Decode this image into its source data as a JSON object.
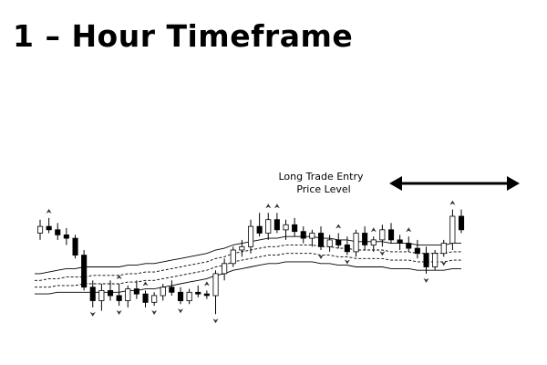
{
  "title": "1 – Hour Timeframe",
  "annotation": {
    "line1": "Long Trade Entry",
    "line2": "Price Level"
  },
  "colors": {
    "bull_body": "#ffffff",
    "bear_body": "#000000",
    "wick": "#000000",
    "band": "#000000",
    "background": "#ffffff"
  },
  "chart_data": {
    "type": "candlestick",
    "grid": false,
    "axes_visible": false,
    "ylim": [
      0,
      100
    ],
    "candles": [
      {
        "o": 70,
        "h": 78,
        "l": 66,
        "c": 74
      },
      {
        "o": 74,
        "h": 79,
        "l": 70,
        "c": 72
      },
      {
        "o": 72,
        "h": 76,
        "l": 66,
        "c": 69
      },
      {
        "o": 69,
        "h": 73,
        "l": 63,
        "c": 67
      },
      {
        "o": 67,
        "h": 69,
        "l": 55,
        "c": 57
      },
      {
        "o": 57,
        "h": 60,
        "l": 36,
        "c": 38
      },
      {
        "o": 38,
        "h": 42,
        "l": 26,
        "c": 30
      },
      {
        "o": 30,
        "h": 40,
        "l": 24,
        "c": 36
      },
      {
        "o": 36,
        "h": 42,
        "l": 30,
        "c": 33
      },
      {
        "o": 33,
        "h": 40,
        "l": 27,
        "c": 30
      },
      {
        "o": 30,
        "h": 39,
        "l": 26,
        "c": 37
      },
      {
        "o": 37,
        "h": 42,
        "l": 31,
        "c": 34
      },
      {
        "o": 34,
        "h": 36,
        "l": 26,
        "c": 29
      },
      {
        "o": 29,
        "h": 35,
        "l": 27,
        "c": 33
      },
      {
        "o": 33,
        "h": 40,
        "l": 30,
        "c": 38
      },
      {
        "o": 38,
        "h": 42,
        "l": 33,
        "c": 35
      },
      {
        "o": 35,
        "h": 38,
        "l": 28,
        "c": 30
      },
      {
        "o": 30,
        "h": 37,
        "l": 28,
        "c": 35
      },
      {
        "o": 35,
        "h": 39,
        "l": 32,
        "c": 34
      },
      {
        "o": 34,
        "h": 36,
        "l": 31,
        "c": 33
      },
      {
        "o": 33,
        "h": 48,
        "l": 22,
        "c": 46
      },
      {
        "o": 46,
        "h": 55,
        "l": 42,
        "c": 52
      },
      {
        "o": 52,
        "h": 62,
        "l": 50,
        "c": 60
      },
      {
        "o": 60,
        "h": 66,
        "l": 56,
        "c": 62
      },
      {
        "o": 62,
        "h": 78,
        "l": 58,
        "c": 74
      },
      {
        "o": 74,
        "h": 82,
        "l": 68,
        "c": 70
      },
      {
        "o": 70,
        "h": 82,
        "l": 66,
        "c": 78
      },
      {
        "o": 78,
        "h": 82,
        "l": 70,
        "c": 72
      },
      {
        "o": 72,
        "h": 78,
        "l": 66,
        "c": 75
      },
      {
        "o": 75,
        "h": 79,
        "l": 68,
        "c": 71
      },
      {
        "o": 71,
        "h": 74,
        "l": 64,
        "c": 67
      },
      {
        "o": 67,
        "h": 72,
        "l": 62,
        "c": 70
      },
      {
        "o": 70,
        "h": 74,
        "l": 60,
        "c": 62
      },
      {
        "o": 62,
        "h": 69,
        "l": 59,
        "c": 66
      },
      {
        "o": 66,
        "h": 70,
        "l": 61,
        "c": 63
      },
      {
        "o": 63,
        "h": 68,
        "l": 57,
        "c": 59
      },
      {
        "o": 59,
        "h": 72,
        "l": 56,
        "c": 70
      },
      {
        "o": 70,
        "h": 74,
        "l": 60,
        "c": 63
      },
      {
        "o": 63,
        "h": 68,
        "l": 59,
        "c": 66
      },
      {
        "o": 66,
        "h": 75,
        "l": 62,
        "c": 72
      },
      {
        "o": 72,
        "h": 76,
        "l": 64,
        "c": 66
      },
      {
        "o": 66,
        "h": 69,
        "l": 60,
        "c": 64
      },
      {
        "o": 64,
        "h": 68,
        "l": 59,
        "c": 61
      },
      {
        "o": 61,
        "h": 66,
        "l": 55,
        "c": 58
      },
      {
        "o": 58,
        "h": 62,
        "l": 46,
        "c": 50
      },
      {
        "o": 50,
        "h": 60,
        "l": 48,
        "c": 58
      },
      {
        "o": 58,
        "h": 66,
        "l": 56,
        "c": 64
      },
      {
        "o": 64,
        "h": 84,
        "l": 60,
        "c": 80
      },
      {
        "o": 80,
        "h": 84,
        "l": 70,
        "c": 72
      }
    ],
    "bands": [
      {
        "name": "upper",
        "values": [
          46,
          47,
          48,
          49,
          49,
          50,
          50,
          50,
          50,
          50,
          51,
          51,
          52,
          52,
          53,
          54,
          55,
          56,
          57,
          58,
          60,
          61,
          63,
          64,
          65,
          66,
          67,
          67,
          68,
          68,
          68,
          68,
          67,
          67,
          66,
          66,
          65,
          65,
          65,
          65,
          64,
          64,
          64,
          63,
          63,
          63,
          63,
          64,
          64
        ]
      },
      {
        "name": "inner-upper",
        "values": [
          42,
          43,
          43,
          44,
          44,
          44,
          45,
          45,
          45,
          45,
          46,
          46,
          47,
          47,
          48,
          49,
          50,
          51,
          52,
          53,
          55,
          56,
          58,
          59,
          60,
          61,
          62,
          62,
          63,
          63,
          63,
          63,
          62,
          62,
          61,
          61,
          60,
          60,
          60,
          60,
          59,
          59,
          59,
          58,
          58,
          58,
          58,
          59,
          59
        ]
      },
      {
        "name": "inner-lower",
        "values": [
          38,
          38,
          39,
          39,
          39,
          40,
          40,
          40,
          40,
          40,
          41,
          41,
          42,
          42,
          43,
          44,
          45,
          46,
          47,
          48,
          50,
          51,
          53,
          54,
          55,
          56,
          57,
          57,
          58,
          58,
          58,
          58,
          57,
          57,
          56,
          56,
          55,
          55,
          55,
          55,
          54,
          54,
          54,
          53,
          53,
          53,
          53,
          54,
          54
        ]
      },
      {
        "name": "lower",
        "values": [
          34,
          34,
          35,
          35,
          35,
          35,
          35,
          35,
          35,
          35,
          36,
          36,
          37,
          37,
          38,
          39,
          40,
          41,
          42,
          43,
          45,
          46,
          48,
          49,
          50,
          51,
          52,
          52,
          53,
          53,
          53,
          53,
          52,
          52,
          51,
          51,
          50,
          50,
          50,
          50,
          49,
          49,
          49,
          48,
          48,
          48,
          48,
          49,
          49
        ]
      }
    ],
    "fractals": [
      {
        "i": 1,
        "pos": "high"
      },
      {
        "i": 6,
        "pos": "low"
      },
      {
        "i": 9,
        "pos": "low"
      },
      {
        "i": 9,
        "pos": "high"
      },
      {
        "i": 12,
        "pos": "high"
      },
      {
        "i": 13,
        "pos": "low"
      },
      {
        "i": 16,
        "pos": "low"
      },
      {
        "i": 19,
        "pos": "high"
      },
      {
        "i": 20,
        "pos": "low"
      },
      {
        "i": 26,
        "pos": "high"
      },
      {
        "i": 27,
        "pos": "high"
      },
      {
        "i": 32,
        "pos": "low"
      },
      {
        "i": 34,
        "pos": "high"
      },
      {
        "i": 35,
        "pos": "low"
      },
      {
        "i": 38,
        "pos": "high"
      },
      {
        "i": 39,
        "pos": "low"
      },
      {
        "i": 42,
        "pos": "high"
      },
      {
        "i": 44,
        "pos": "low"
      },
      {
        "i": 47,
        "pos": "high"
      },
      {
        "i": 46,
        "pos": "low"
      }
    ]
  }
}
